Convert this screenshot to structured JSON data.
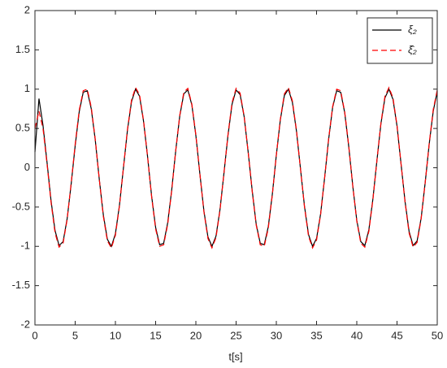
{
  "chart_data": {
    "type": "line",
    "x_label": "t[s]",
    "x": [
      0,
      0.5,
      1,
      1.5,
      2,
      2.5,
      3,
      3.5,
      4,
      4.5,
      5,
      5.5,
      6,
      6.5,
      7,
      7.5,
      8,
      8.5,
      9,
      9.5,
      10,
      10.5,
      11,
      11.5,
      12,
      12.5,
      13,
      13.5,
      14,
      14.5,
      15,
      15.5,
      16,
      16.5,
      17,
      17.5,
      18,
      18.5,
      19,
      19.5,
      20,
      20.5,
      21,
      21.5,
      22,
      22.5,
      23,
      23.5,
      24,
      24.5,
      25,
      25.5,
      26,
      26.5,
      27,
      27.5,
      28,
      28.5,
      29,
      29.5,
      30,
      30.5,
      31,
      31.5,
      32,
      32.5,
      33,
      33.5,
      34,
      34.5,
      35,
      35.5,
      36,
      36.5,
      37,
      37.5,
      38,
      38.5,
      39,
      39.5,
      40,
      40.5,
      41,
      41.5,
      42,
      42.5,
      43,
      43.5,
      44,
      44.5,
      45,
      45.5,
      46,
      46.5,
      47,
      47.5,
      48,
      48.5,
      49,
      49.5,
      50
    ],
    "series": [
      {
        "name": "ξ₂",
        "color": "#000000",
        "dash": false,
        "values": [
          0.2,
          0.88,
          0.54,
          0.07,
          -0.42,
          -0.8,
          -0.99,
          -0.94,
          -0.65,
          -0.21,
          0.28,
          0.71,
          0.96,
          0.98,
          0.75,
          0.35,
          -0.15,
          -0.6,
          -0.91,
          -1,
          -0.84,
          -0.48,
          0,
          0.48,
          0.84,
          1,
          0.91,
          0.59,
          0.14,
          -0.36,
          -0.76,
          -0.98,
          -0.96,
          -0.7,
          -0.28,
          0.22,
          0.66,
          0.94,
          0.99,
          0.8,
          0.41,
          -0.08,
          -0.55,
          -0.88,
          -1,
          -0.87,
          -0.53,
          -0.06,
          0.42,
          0.81,
          0.99,
          0.93,
          0.65,
          0.2,
          -0.29,
          -0.72,
          -0.96,
          -0.98,
          -0.75,
          -0.34,
          0.16,
          0.61,
          0.92,
          1,
          0.83,
          0.47,
          -0.01,
          -0.49,
          -0.85,
          -1,
          -0.9,
          -0.59,
          -0.13,
          0.36,
          0.77,
          0.98,
          0.96,
          0.7,
          0.27,
          -0.23,
          -0.67,
          -0.94,
          -0.99,
          -0.79,
          -0.4,
          0.09,
          0.56,
          0.89,
          1,
          0.87,
          0.53,
          0.05,
          -0.43,
          -0.81,
          -0.99,
          -0.93,
          -0.64,
          -0.19,
          0.3,
          0.72,
          0.97
        ]
      },
      {
        "name": "ξ̂₂",
        "color": "#ff0000",
        "dash": true,
        "values": [
          0.5,
          0.72,
          0.5,
          0.05,
          -0.44,
          -0.83,
          -1.01,
          -0.96,
          -0.66,
          -0.2,
          0.3,
          0.73,
          0.98,
          1,
          0.77,
          0.36,
          -0.15,
          -0.62,
          -0.93,
          -1.02,
          -0.86,
          -0.49,
          0,
          0.49,
          0.86,
          1.02,
          0.93,
          0.6,
          0.14,
          -0.37,
          -0.78,
          -1,
          -0.98,
          -0.72,
          -0.29,
          0.22,
          0.67,
          0.96,
          1.01,
          0.81,
          0.42,
          -0.08,
          -0.56,
          -0.9,
          -1.02,
          -0.89,
          -0.54,
          -0.06,
          0.43,
          0.83,
          1.01,
          0.95,
          0.66,
          0.2,
          -0.3,
          -0.73,
          -0.98,
          -1,
          -0.77,
          -0.35,
          0.16,
          0.62,
          0.94,
          1.02,
          0.85,
          0.48,
          -0.01,
          -0.5,
          -0.87,
          -1.02,
          -0.92,
          -0.6,
          -0.13,
          0.37,
          0.78,
          1,
          0.98,
          0.71,
          0.28,
          -0.23,
          -0.68,
          -0.96,
          -1.01,
          -0.81,
          -0.41,
          0.09,
          0.57,
          0.91,
          1.02,
          0.89,
          0.54,
          0.05,
          -0.44,
          -0.83,
          -1.01,
          -0.95,
          -0.65,
          -0.19,
          0.31,
          0.74,
          0.99
        ]
      }
    ],
    "xlim": [
      0,
      50
    ],
    "xticks": [
      0,
      5,
      10,
      15,
      20,
      25,
      30,
      35,
      40,
      45,
      50
    ],
    "ylim": [
      -2,
      2
    ],
    "yticks": [
      -2,
      -1.5,
      -1,
      -0.5,
      0,
      0.5,
      1,
      1.5,
      2
    ],
    "legend": "top-right"
  }
}
